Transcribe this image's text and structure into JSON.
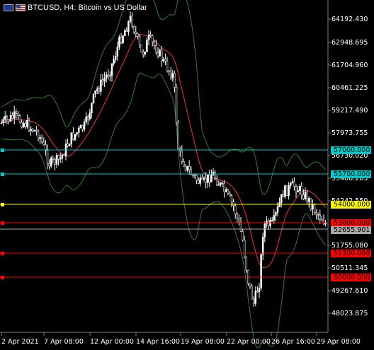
{
  "window": {
    "title": "BTCUSD, H4:  Bitcoin vs US Dollar",
    "flag_icons": [
      "eu-flag-icon",
      "us-flag-icon"
    ]
  },
  "price_axis": {
    "labels": [
      "64192.430",
      "62948.695",
      "61704.960",
      "60461.225",
      "59217.490",
      "57973.755",
      "56730.020",
      "55486.285",
      "54242.550",
      "51755.080",
      "50511.345",
      "49267.610",
      "48023.875"
    ],
    "current_price": "52655.901"
  },
  "time_axis": {
    "labels": [
      "2 Apr 2021",
      "7 Apr 08:00",
      "12 Apr 00:00",
      "14 Apr 16:00",
      "19 Apr 08:00",
      "22 Apr 00:00",
      "26 Apr 16:00",
      "29 Apr 08:00"
    ]
  },
  "horizontal_lines": [
    {
      "label": "57000.000",
      "color": "#00c8c8"
    },
    {
      "label": "55700.000",
      "color": "#00c8c8"
    },
    {
      "label": "54000.000",
      "color": "#ffff00"
    },
    {
      "label": "53000.000",
      "color": "#ff0000"
    },
    {
      "label": "51300.000",
      "color": "#ff0000"
    },
    {
      "label": "50000.000",
      "color": "#ff0000"
    }
  ],
  "colors": {
    "background": "#000000",
    "candle": "#ffffff",
    "bollinger_band": "#2e7d32",
    "moving_average": "#c83232",
    "grid": "#808080"
  }
}
